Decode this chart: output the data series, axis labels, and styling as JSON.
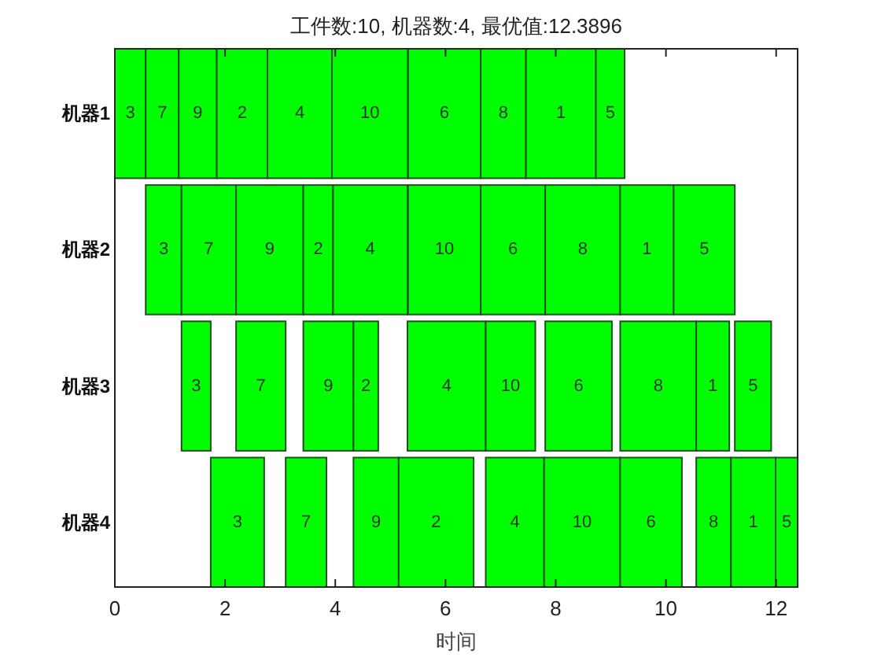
{
  "chart_data": {
    "type": "bar",
    "orientation": "horizontal",
    "title": "工件数:10, 机器数:4, 最优值:12.3896",
    "xlabel": "时间",
    "categories": [
      "机器1",
      "机器2",
      "机器3",
      "机器4"
    ],
    "xlim": [
      0,
      12.3896
    ],
    "xticks": [
      0,
      2,
      4,
      6,
      8,
      10,
      12
    ],
    "series": [
      {
        "name": "3",
        "color": "#00ff00",
        "base": [
          0,
          0.56,
          1.21,
          1.74
        ],
        "values": [
          0.56,
          0.65,
          0.53,
          0.97
        ]
      },
      {
        "name": "7",
        "color": "#00ff00",
        "base": [
          0.56,
          1.21,
          2.2,
          3.1
        ],
        "values": [
          0.6,
          0.99,
          0.9,
          0.74
        ]
      },
      {
        "name": "9",
        "color": "#00ff00",
        "base": [
          1.16,
          2.2,
          3.42,
          4.33
        ],
        "values": [
          0.69,
          1.22,
          0.91,
          0.82
        ]
      },
      {
        "name": "2",
        "color": "#00ff00",
        "base": [
          1.85,
          3.42,
          4.33,
          5.15
        ],
        "values": [
          0.92,
          0.54,
          0.45,
          1.36
        ]
      },
      {
        "name": "4",
        "color": "#00ff00",
        "base": [
          2.77,
          3.96,
          5.31,
          6.73
        ],
        "values": [
          1.17,
          1.35,
          1.42,
          1.06
        ]
      },
      {
        "name": "10",
        "color": "#00ff00",
        "base": [
          3.94,
          5.32,
          6.73,
          7.79
        ],
        "values": [
          1.38,
          1.32,
          0.9,
          1.38
        ]
      },
      {
        "name": "6",
        "color": "#00ff00",
        "base": [
          5.32,
          6.64,
          7.81,
          9.17
        ],
        "values": [
          1.32,
          1.17,
          1.21,
          1.12
        ]
      },
      {
        "name": "8",
        "color": "#00ff00",
        "base": [
          6.64,
          7.81,
          9.17,
          10.55
        ],
        "values": [
          0.82,
          1.36,
          1.38,
          0.63
        ]
      },
      {
        "name": "1",
        "color": "#00ff00",
        "base": [
          7.46,
          9.17,
          10.55,
          11.18
        ],
        "values": [
          1.27,
          0.97,
          0.6,
          0.81
        ]
      },
      {
        "name": "5",
        "color": "#00ff00",
        "base": [
          8.73,
          10.14,
          11.25,
          11.99
        ],
        "values": [
          0.52,
          1.11,
          0.66,
          0.4
        ]
      }
    ]
  }
}
